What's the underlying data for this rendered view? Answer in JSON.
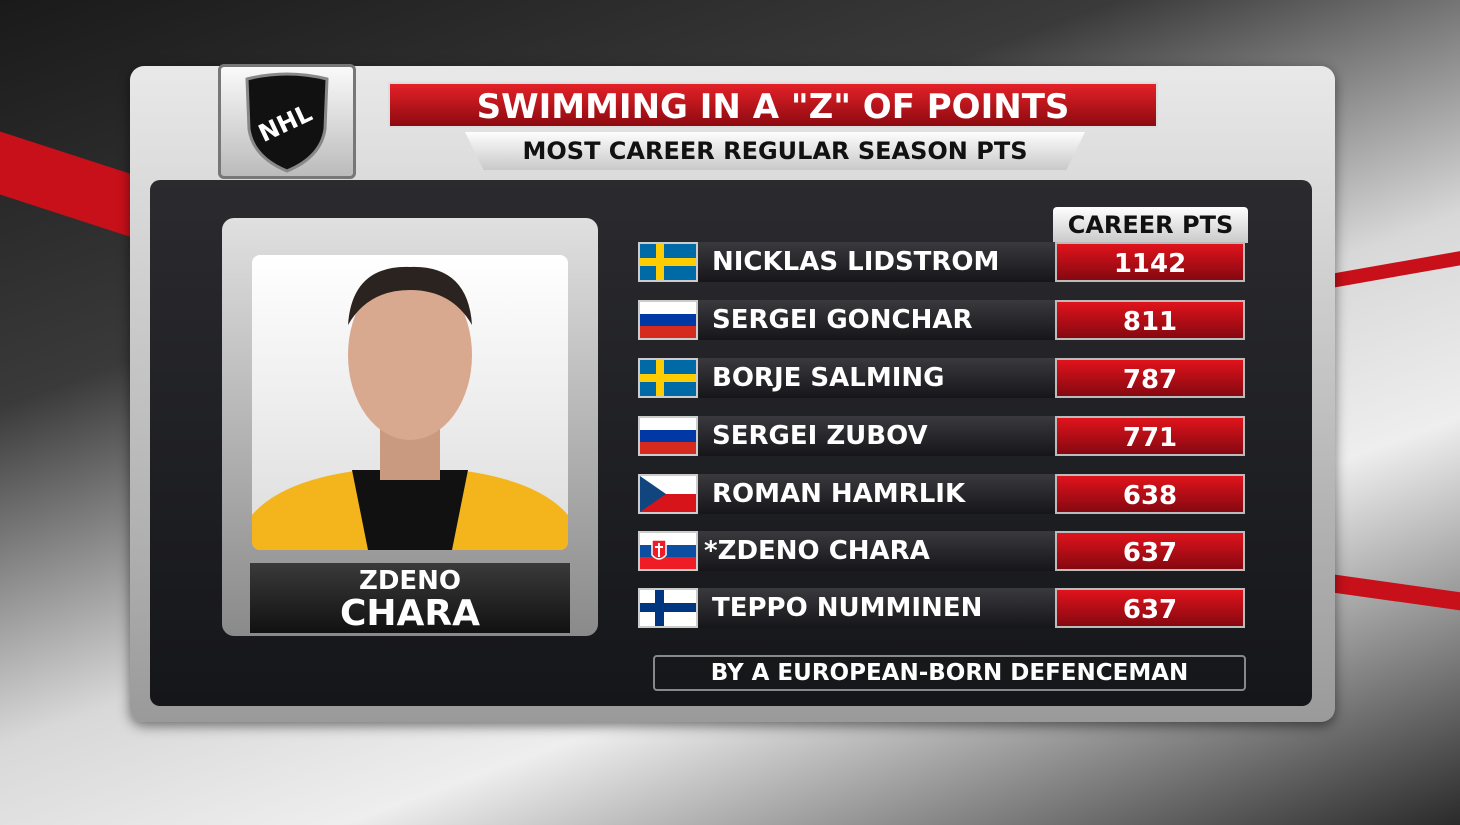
{
  "header": {
    "logo": "NHL",
    "title": "SWIMMING IN A \"Z\" OF POINTS",
    "subtitle": "MOST CAREER REGULAR SEASON PTS"
  },
  "player": {
    "first_name": "ZDENO",
    "last_name": "CHARA"
  },
  "table": {
    "column_header": "CAREER PTS",
    "rows": [
      [
        "NICKLAS LIDSTROM",
        1142
      ],
      [
        "SERGEI GONCHAR",
        811
      ],
      [
        "BORJE SALMING",
        787
      ],
      [
        "SERGEI ZUBOV",
        771
      ],
      [
        "ROMAN HAMRLIK",
        638
      ],
      [
        "*ZDENO CHARA",
        637
      ],
      [
        "TEPPO NUMMINEN",
        637
      ]
    ]
  },
  "footer": "BY A EUROPEAN-BORN DEFENCEMAN"
}
